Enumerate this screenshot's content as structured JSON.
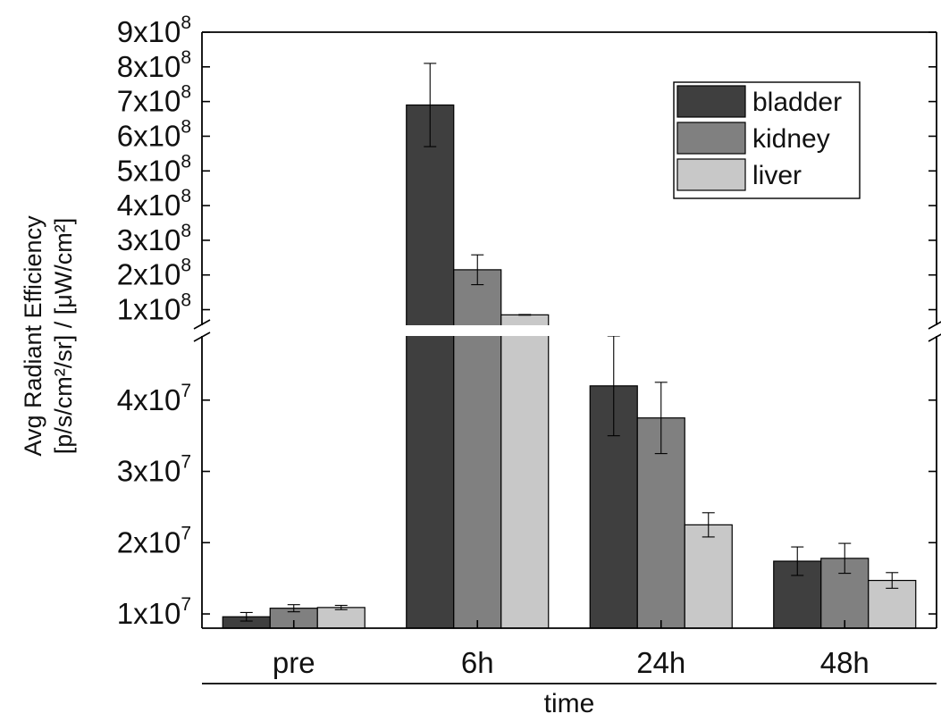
{
  "chart_data": {
    "type": "bar",
    "ylabel_line1": "Avg Radiant Efficiency",
    "ylabel_line2": "[p/s/cm²/sr] / [μW/cm²]",
    "xlabel": "time",
    "categories": [
      "pre",
      "6h",
      "24h",
      "48h"
    ],
    "series": [
      {
        "name": "bladder",
        "color": "#3f3f3f",
        "values": [
          9600000.0,
          690000000.0,
          42000000.0,
          17400000.0
        ],
        "errors": [
          600000.0,
          120000000.0,
          7000000.0,
          2000000.0
        ]
      },
      {
        "name": "kidney",
        "color": "#808080",
        "values": [
          10800000.0,
          215000000.0,
          37500000.0,
          17800000.0
        ],
        "errors": [
          500000.0,
          43000000.0,
          5000000.0,
          2100000.0
        ]
      },
      {
        "name": "liver",
        "color": "#c8c8c8",
        "values": [
          10900000.0,
          85000000.0,
          22500000.0,
          14700000.0
        ],
        "errors": [
          300000.0,
          1000000.0,
          1700000.0,
          1100000.0
        ]
      }
    ],
    "y_axis_break": true,
    "lower_segment": {
      "ylim": [
        8000000.0,
        49000000.0
      ],
      "ticks": [
        {
          "value": 10000000.0,
          "mantissa": "1x10",
          "exp": "7"
        },
        {
          "value": 20000000.0,
          "mantissa": "2x10",
          "exp": "7"
        },
        {
          "value": 30000000.0,
          "mantissa": "3x10",
          "exp": "7"
        },
        {
          "value": 40000000.0,
          "mantissa": "4x10",
          "exp": "7"
        }
      ]
    },
    "upper_segment": {
      "ylim": [
        55000000.0,
        900000000.0
      ],
      "ticks": [
        {
          "value": 100000000.0,
          "mantissa": "1x10",
          "exp": "8"
        },
        {
          "value": 200000000.0,
          "mantissa": "2x10",
          "exp": "8"
        },
        {
          "value": 300000000.0,
          "mantissa": "3x10",
          "exp": "8"
        },
        {
          "value": 400000000.0,
          "mantissa": "4x10",
          "exp": "8"
        },
        {
          "value": 500000000.0,
          "mantissa": "5x10",
          "exp": "8"
        },
        {
          "value": 600000000.0,
          "mantissa": "6x10",
          "exp": "8"
        },
        {
          "value": 700000000.0,
          "mantissa": "7x10",
          "exp": "8"
        },
        {
          "value": 800000000.0,
          "mantissa": "8x10",
          "exp": "8"
        },
        {
          "value": 900000000.0,
          "mantissa": "9x10",
          "exp": "8"
        }
      ]
    },
    "legend_position": "top-right",
    "grid": false
  }
}
